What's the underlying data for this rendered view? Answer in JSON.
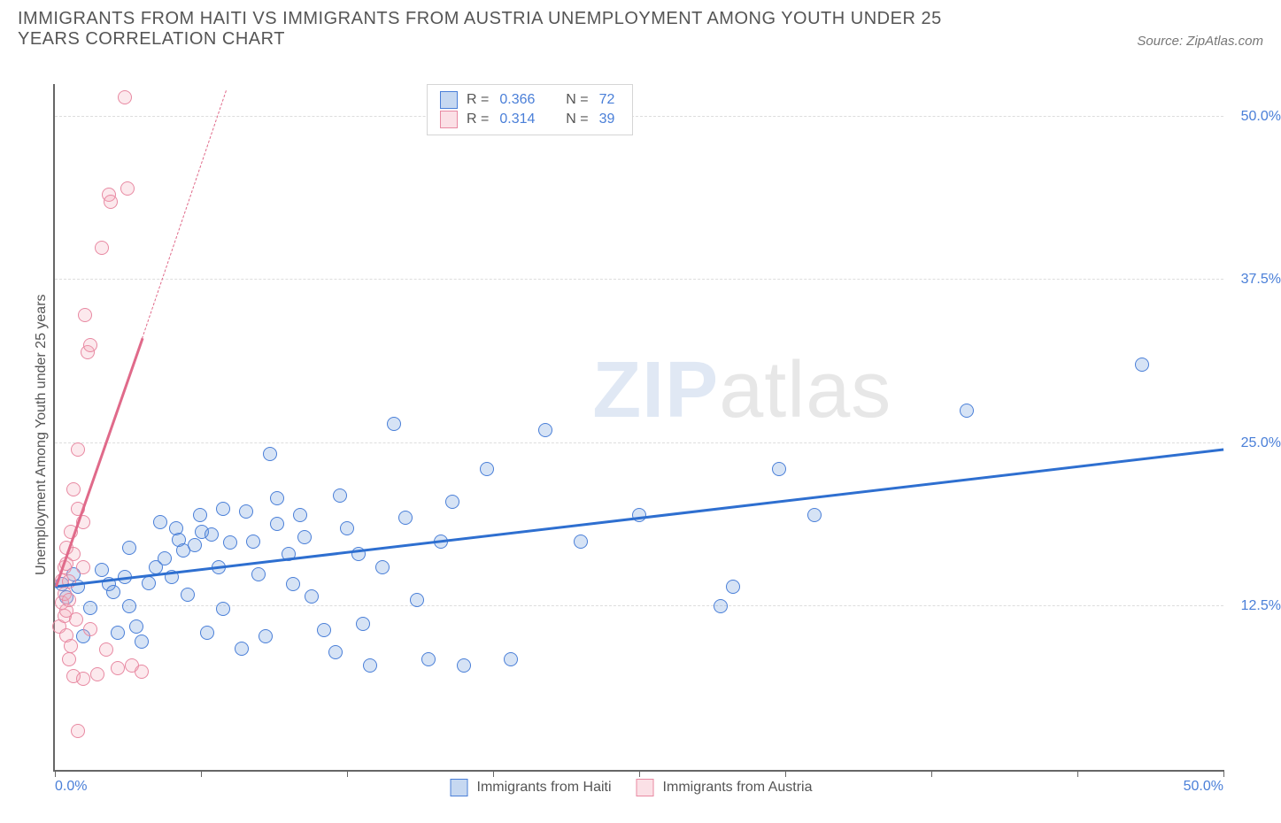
{
  "title": "IMMIGRANTS FROM HAITI VS IMMIGRANTS FROM AUSTRIA UNEMPLOYMENT AMONG YOUTH UNDER 25 YEARS CORRELATION CHART",
  "source_prefix": "Source: ",
  "source_name": "ZipAtlas.com",
  "yaxis_label": "Unemployment Among Youth under 25 years",
  "watermark": {
    "part1": "ZIP",
    "part2": "atlas"
  },
  "chart": {
    "type": "scatter",
    "xlim": [
      0,
      50
    ],
    "ylim": [
      0,
      52.5
    ],
    "background_color": "#ffffff",
    "grid_color": "#dddddd",
    "axis_color": "#666666",
    "tick_label_color": "#4a7fd8",
    "yticks": [
      {
        "v": 12.5,
        "label": "12.5%"
      },
      {
        "v": 25.0,
        "label": "25.0%"
      },
      {
        "v": 37.5,
        "label": "37.5%"
      },
      {
        "v": 50.0,
        "label": "50.0%"
      }
    ],
    "xticks": [
      0,
      6.25,
      12.5,
      18.75,
      25.0,
      31.25,
      37.5,
      43.75,
      50.0
    ],
    "xtick_labels": [
      {
        "v": 0,
        "label": "0.0%"
      },
      {
        "v": 50,
        "label": "50.0%"
      }
    ],
    "marker_radius": 8,
    "marker_border_width": 1.2,
    "marker_fill_opacity": 0.25,
    "series": [
      {
        "name": "Immigrants from Haiti",
        "color": "#5b8fd6",
        "stroke": "#4a7fd8",
        "R": "0.366",
        "N": "72",
        "trend": {
          "color": "#2e6fd0",
          "width": 3,
          "solid": {
            "x1": 0,
            "y1": 14.0,
            "x2": 50,
            "y2": 24.5
          },
          "dashed_extension": null
        },
        "points": [
          [
            0.3,
            14.2
          ],
          [
            0.5,
            13.2
          ],
          [
            0.8,
            15.0
          ],
          [
            1.0,
            14.0
          ],
          [
            1.2,
            10.2
          ],
          [
            1.5,
            12.4
          ],
          [
            2.0,
            15.3
          ],
          [
            2.3,
            14.2
          ],
          [
            2.5,
            13.6
          ],
          [
            2.7,
            10.5
          ],
          [
            3.0,
            14.8
          ],
          [
            3.2,
            17.0
          ],
          [
            3.2,
            12.5
          ],
          [
            3.5,
            11.0
          ],
          [
            3.7,
            9.8
          ],
          [
            4.0,
            14.3
          ],
          [
            4.3,
            15.5
          ],
          [
            4.5,
            19.0
          ],
          [
            4.7,
            16.2
          ],
          [
            5.0,
            14.8
          ],
          [
            5.2,
            18.5
          ],
          [
            5.3,
            17.6
          ],
          [
            5.5,
            16.8
          ],
          [
            5.7,
            13.4
          ],
          [
            6.0,
            17.2
          ],
          [
            6.2,
            19.5
          ],
          [
            6.3,
            18.2
          ],
          [
            6.5,
            10.5
          ],
          [
            6.7,
            18.0
          ],
          [
            7.0,
            15.5
          ],
          [
            7.2,
            20.0
          ],
          [
            7.2,
            12.3
          ],
          [
            7.5,
            17.4
          ],
          [
            8.0,
            9.3
          ],
          [
            8.2,
            19.8
          ],
          [
            8.5,
            17.5
          ],
          [
            8.7,
            15.0
          ],
          [
            9.0,
            10.2
          ],
          [
            9.2,
            24.2
          ],
          [
            9.5,
            20.8
          ],
          [
            9.5,
            18.8
          ],
          [
            10.0,
            16.5
          ],
          [
            10.2,
            14.2
          ],
          [
            10.5,
            19.5
          ],
          [
            10.7,
            17.8
          ],
          [
            11.0,
            13.3
          ],
          [
            11.5,
            10.7
          ],
          [
            12.0,
            9.0
          ],
          [
            12.2,
            21.0
          ],
          [
            12.5,
            18.5
          ],
          [
            13.0,
            16.5
          ],
          [
            13.2,
            11.2
          ],
          [
            13.5,
            8.0
          ],
          [
            14.0,
            15.5
          ],
          [
            14.5,
            26.5
          ],
          [
            15.0,
            19.3
          ],
          [
            15.5,
            13.0
          ],
          [
            16.0,
            8.5
          ],
          [
            16.5,
            17.5
          ],
          [
            17.5,
            8.0
          ],
          [
            18.5,
            23.0
          ],
          [
            19.5,
            8.5
          ],
          [
            21.0,
            26.0
          ],
          [
            22.5,
            17.5
          ],
          [
            25.0,
            19.5
          ],
          [
            28.5,
            12.5
          ],
          [
            29.0,
            14.0
          ],
          [
            31.0,
            23.0
          ],
          [
            32.5,
            19.5
          ],
          [
            39.0,
            27.5
          ],
          [
            46.5,
            31.0
          ],
          [
            17.0,
            20.5
          ]
        ]
      },
      {
        "name": "Immigrants from Austria",
        "color": "#f4a6b8",
        "stroke": "#e889a2",
        "R": "0.314",
        "N": "39",
        "trend": {
          "color": "#e06a8a",
          "width": 2.5,
          "solid": {
            "x1": 0,
            "y1": 14.0,
            "x2": 3.7,
            "y2": 33.0
          },
          "dashed_extension": {
            "x1": 3.7,
            "y1": 33.0,
            "x2": 7.3,
            "y2": 52.0
          }
        },
        "points": [
          [
            0.2,
            11.0
          ],
          [
            0.3,
            12.8
          ],
          [
            0.3,
            14.5
          ],
          [
            0.4,
            11.8
          ],
          [
            0.4,
            13.5
          ],
          [
            0.4,
            15.5
          ],
          [
            0.5,
            10.3
          ],
          [
            0.5,
            12.2
          ],
          [
            0.5,
            15.8
          ],
          [
            0.5,
            17.0
          ],
          [
            0.6,
            8.5
          ],
          [
            0.6,
            13.0
          ],
          [
            0.6,
            14.4
          ],
          [
            0.7,
            9.5
          ],
          [
            0.7,
            18.2
          ],
          [
            0.8,
            7.2
          ],
          [
            0.8,
            16.5
          ],
          [
            0.8,
            21.5
          ],
          [
            0.9,
            11.5
          ],
          [
            1.0,
            3.0
          ],
          [
            1.0,
            20.0
          ],
          [
            1.0,
            24.5
          ],
          [
            1.2,
            7.0
          ],
          [
            1.2,
            15.5
          ],
          [
            1.2,
            19.0
          ],
          [
            1.3,
            34.8
          ],
          [
            1.4,
            32.0
          ],
          [
            1.5,
            32.5
          ],
          [
            1.5,
            10.8
          ],
          [
            1.8,
            7.3
          ],
          [
            2.0,
            40.0
          ],
          [
            2.2,
            9.2
          ],
          [
            2.3,
            44.0
          ],
          [
            2.4,
            43.5
          ],
          [
            2.7,
            7.8
          ],
          [
            3.0,
            51.5
          ],
          [
            3.1,
            44.5
          ],
          [
            3.3,
            8.0
          ],
          [
            3.7,
            7.5
          ]
        ]
      }
    ],
    "legend_top": {
      "R_label": "R =",
      "N_label": "N ="
    },
    "legend_bottom": true
  }
}
